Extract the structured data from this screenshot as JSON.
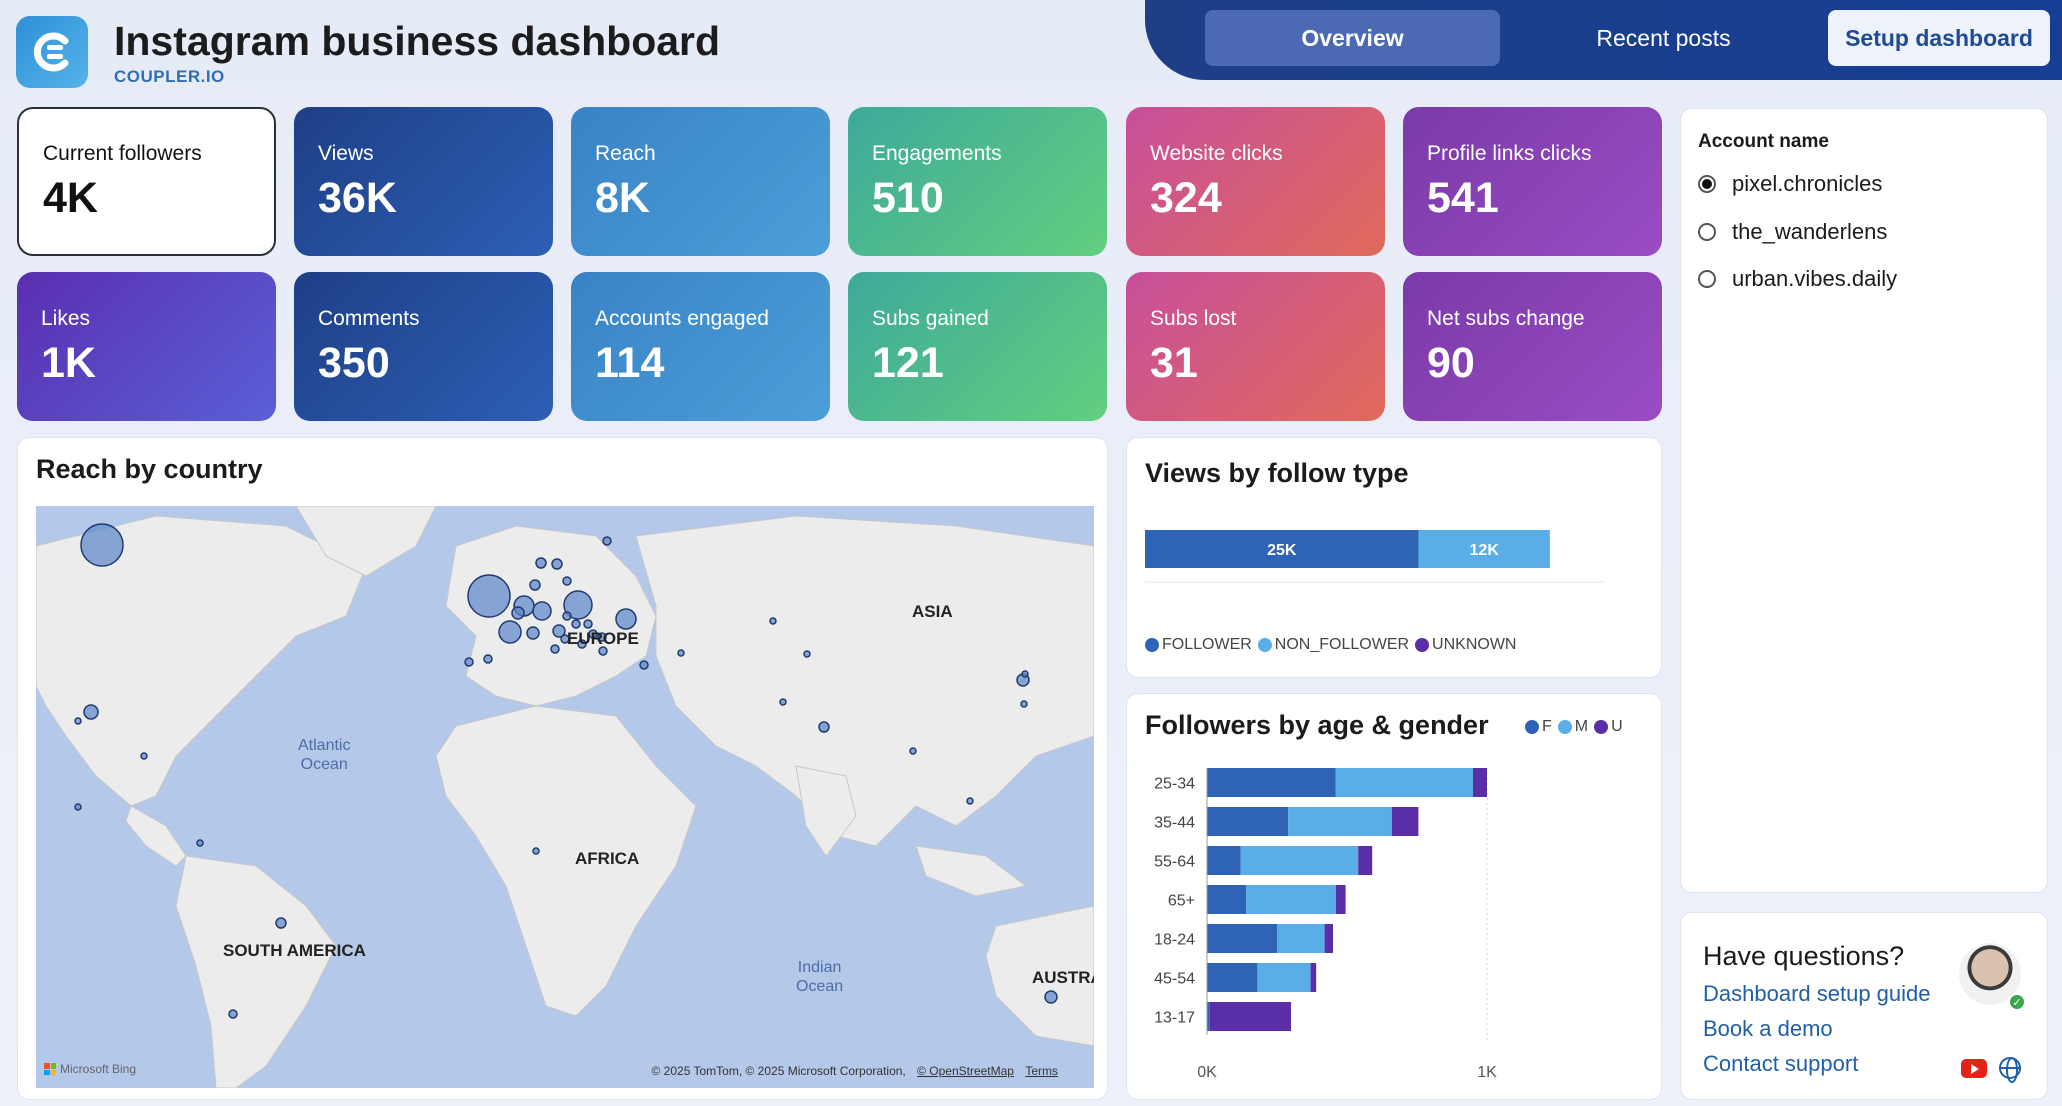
{
  "header": {
    "title": "Instagram business dashboard",
    "subtitle": "COUPLER.IO",
    "logo_icon": "coupler-logo-icon"
  },
  "nav": {
    "tabs": [
      {
        "label": "Overview",
        "active": true
      },
      {
        "label": "Recent posts",
        "active": false
      },
      {
        "label": "Setup dashboard",
        "active": false
      }
    ]
  },
  "kpis": [
    {
      "label": "Current followers",
      "value": "4K"
    },
    {
      "label": "Views",
      "value": "36K"
    },
    {
      "label": "Reach",
      "value": "8K"
    },
    {
      "label": "Engagements",
      "value": "510"
    },
    {
      "label": "Website clicks",
      "value": "324"
    },
    {
      "label": "Profile links clicks",
      "value": "541"
    },
    {
      "label": "Likes",
      "value": "1K"
    },
    {
      "label": "Comments",
      "value": "350"
    },
    {
      "label": "Accounts engaged",
      "value": "114"
    },
    {
      "label": "Subs gained",
      "value": "121"
    },
    {
      "label": "Subs lost",
      "value": "31"
    },
    {
      "label": "Net subs change",
      "value": "90"
    }
  ],
  "map_panel": {
    "title": "Reach by country",
    "labels": {
      "asia": "ASIA",
      "europe": "EUROPE",
      "africa": "AFRICA",
      "south_america": "SOUTH AMERICA",
      "australia": "AUSTRA"
    },
    "oceans": {
      "atlantic": [
        "Atlantic",
        "Ocean"
      ],
      "indian": [
        "Indian",
        "Ocean"
      ]
    },
    "attribution": "© 2025 TomTom, © 2025 Microsoft Corporation,",
    "attribution_link1": "© OpenStreetMap",
    "attribution_link2": "Terms",
    "provider": "Microsoft Bing"
  },
  "views_panel": {
    "title": "Views by follow type",
    "legend": [
      "FOLLOWER",
      "NON_FOLLOWER",
      "UNKNOWN"
    ],
    "legend_colors": [
      "#2e63b5",
      "#5aaee8",
      "#5a2ea6"
    ]
  },
  "age_panel": {
    "title": "Followers by age & gender",
    "legend": [
      "F",
      "M",
      "U"
    ],
    "axis_ticks": [
      "0K",
      "1K"
    ]
  },
  "chart_data": [
    {
      "type": "bar",
      "orientation": "horizontal-stacked",
      "title": "Views by follow type",
      "categories": [
        ""
      ],
      "series": [
        {
          "name": "FOLLOWER",
          "values": [
            25000
          ],
          "label": "25K"
        },
        {
          "name": "NON_FOLLOWER",
          "values": [
            12000
          ],
          "label": "12K"
        },
        {
          "name": "UNKNOWN",
          "values": [
            0
          ],
          "label": ""
        }
      ]
    },
    {
      "type": "bar",
      "orientation": "horizontal-stacked",
      "title": "Followers by age & gender",
      "categories": [
        "25-34",
        "35-44",
        "55-64",
        "65+",
        "18-24",
        "45-54",
        "13-17"
      ],
      "series": [
        {
          "name": "F",
          "values": [
            460,
            290,
            120,
            140,
            250,
            180,
            10
          ]
        },
        {
          "name": "M",
          "values": [
            490,
            370,
            420,
            320,
            170,
            190,
            0
          ]
        },
        {
          "name": "U",
          "values": [
            50,
            95,
            50,
            35,
            30,
            20,
            290
          ]
        }
      ],
      "xlim": [
        0,
        1000
      ],
      "xticks": [
        "0K",
        "1K"
      ]
    }
  ],
  "account_panel": {
    "title": "Account name",
    "options": [
      {
        "label": "pixel.chronicles",
        "selected": true
      },
      {
        "label": "the_wanderlens",
        "selected": false
      },
      {
        "label": "urban.vibes.daily",
        "selected": false
      }
    ]
  },
  "help_panel": {
    "title": "Have questions?",
    "links": [
      "Dashboard setup guide",
      "Book a demo",
      "Contact support"
    ]
  }
}
